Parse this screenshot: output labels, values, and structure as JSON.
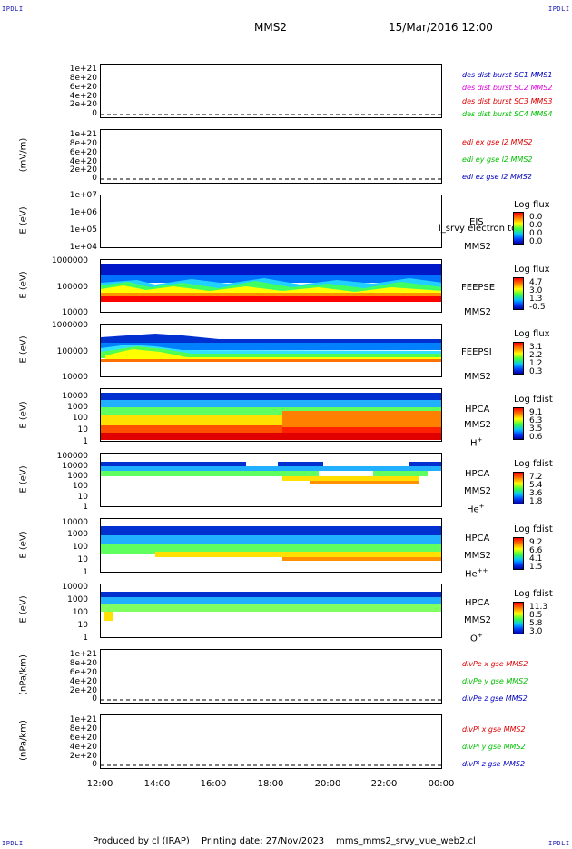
{
  "corners": {
    "tl": "IPDLI",
    "tr": "IPDLI",
    "bl": "IPDLI",
    "br": "IPDLI"
  },
  "header": {
    "title": "MMS2",
    "datetime": "15/Mar/2016 12:00"
  },
  "footer": {
    "produced": "Produced by cl (IRAP)",
    "printing": "Printing date: 27/Nov/2023",
    "script": "mms_mms2_srvy_vue_web2.cl"
  },
  "x_ticks": [
    "12:00",
    "14:00",
    "16:00",
    "18:00",
    "20:00",
    "22:00",
    "00:00"
  ],
  "colors": {
    "red": "#e00000",
    "green": "#00c000",
    "blue": "#0000c0",
    "magenta": "#e000e0"
  },
  "chart_data": [
    {
      "type": "line",
      "panel": "des_dist",
      "ylabel": "",
      "yticks": [
        "1e+21",
        "8e+20",
        "6e+20",
        "4e+20",
        "2e+20",
        "0"
      ],
      "legend": [
        {
          "text": "des dist burst SC1 MMS1",
          "color": "#0000c0"
        },
        {
          "text": "des dist burst SC2 MMS2",
          "color": "#e000e0"
        },
        {
          "text": "des dist burst SC3 MMS3",
          "color": "#e00000"
        },
        {
          "text": "des dist burst SC4 MMS4",
          "color": "#00c000"
        }
      ]
    },
    {
      "type": "line",
      "panel": "edi",
      "ylabel": "(mV/m)",
      "yticks": [
        "1e+21",
        "8e+20",
        "6e+20",
        "4e+20",
        "2e+20",
        "0"
      ],
      "legend": [
        {
          "text": "edi ex gse l2 MMS2",
          "color": "#e00000"
        },
        {
          "text": "edi ey gse l2 MMS2",
          "color": "#00c000"
        },
        {
          "text": "edi ez gse l2 MMS2",
          "color": "#0000c0"
        }
      ]
    },
    {
      "type": "heatmap",
      "panel": "eis",
      "ylabel": "E (eV)",
      "yticks": [
        "1e+07",
        "1e+06",
        "1e+05",
        "1e+04"
      ],
      "side": [
        "EIS",
        "MMS2"
      ],
      "overlay": "l_srvy electron tof",
      "cb_title": "Log flux",
      "cb_values": [
        "0.0",
        "0.0",
        "0.0",
        "0.0"
      ]
    },
    {
      "type": "heatmap",
      "panel": "feepse",
      "ylabel": "E (eV)",
      "yticks": [
        "1000000",
        "100000",
        "10000"
      ],
      "side": [
        "FEEPSE",
        "MMS2"
      ],
      "cb_title": "Log flux",
      "cb_values": [
        "4.7",
        "3.0",
        "1.3",
        "-0.5"
      ]
    },
    {
      "type": "heatmap",
      "panel": "feepsi",
      "ylabel": "E (eV)",
      "yticks": [
        "1000000",
        "100000",
        "10000"
      ],
      "side": [
        "FEEPSI",
        "MMS2"
      ],
      "cb_title": "Log flux",
      "cb_values": [
        "3.1",
        "2.2",
        "1.2",
        "0.3"
      ]
    },
    {
      "type": "heatmap",
      "panel": "hpca_h",
      "ylabel": "E (eV)",
      "yticks": [
        "10000",
        "1000",
        "100",
        "10",
        "1"
      ],
      "side": [
        "HPCA",
        "MMS2"
      ],
      "species": "H",
      "charge": "+",
      "cb_title": "Log fdist",
      "cb_values": [
        "9.1",
        "6.3",
        "3.5",
        "0.6"
      ]
    },
    {
      "type": "heatmap",
      "panel": "hpca_he",
      "ylabel": "E (eV)",
      "yticks": [
        "100000",
        "10000",
        "1000",
        "100",
        "10",
        "1"
      ],
      "side": [
        "HPCA",
        "MMS2"
      ],
      "species": "He",
      "charge": "+",
      "cb_title": "Log fdist",
      "cb_values": [
        "7.2",
        "5.4",
        "3.6",
        "1.8"
      ]
    },
    {
      "type": "heatmap",
      "panel": "hpca_hepp",
      "ylabel": "E (eV)",
      "yticks": [
        "10000",
        "1000",
        "100",
        "10",
        "1"
      ],
      "side": [
        "HPCA",
        "MMS2"
      ],
      "species": "He",
      "charge": "++",
      "cb_title": "Log fdist",
      "cb_values": [
        "9.2",
        "6.6",
        "4.1",
        "1.5"
      ]
    },
    {
      "type": "heatmap",
      "panel": "hpca_o",
      "ylabel": "E (eV)",
      "yticks": [
        "10000",
        "1000",
        "100",
        "10",
        "1"
      ],
      "side": [
        "HPCA",
        "MMS2"
      ],
      "species": "O",
      "charge": "+",
      "cb_title": "Log fdist",
      "cb_values": [
        "11.3",
        "8.5",
        "5.8",
        "3.0"
      ]
    },
    {
      "type": "line",
      "panel": "divpe",
      "ylabel": "(nPa/km)",
      "yticks": [
        "1e+21",
        "8e+20",
        "6e+20",
        "4e+20",
        "2e+20",
        "0"
      ],
      "legend": [
        {
          "text": "divPe x gse MMS2",
          "color": "#e00000"
        },
        {
          "text": "divPe y gse MMS2",
          "color": "#00c000"
        },
        {
          "text": "divPe z gse MMS2",
          "color": "#0000c0"
        }
      ]
    },
    {
      "type": "line",
      "panel": "divpi",
      "ylabel": "(nPa/km)",
      "yticks": [
        "1e+21",
        "8e+20",
        "6e+20",
        "4e+20",
        "2e+20",
        "0"
      ],
      "legend": [
        {
          "text": "divPi x gse MMS2",
          "color": "#e00000"
        },
        {
          "text": "divPi y gse MMS2",
          "color": "#00c000"
        },
        {
          "text": "divPi z gse MMS2",
          "color": "#0000c0"
        }
      ]
    }
  ]
}
